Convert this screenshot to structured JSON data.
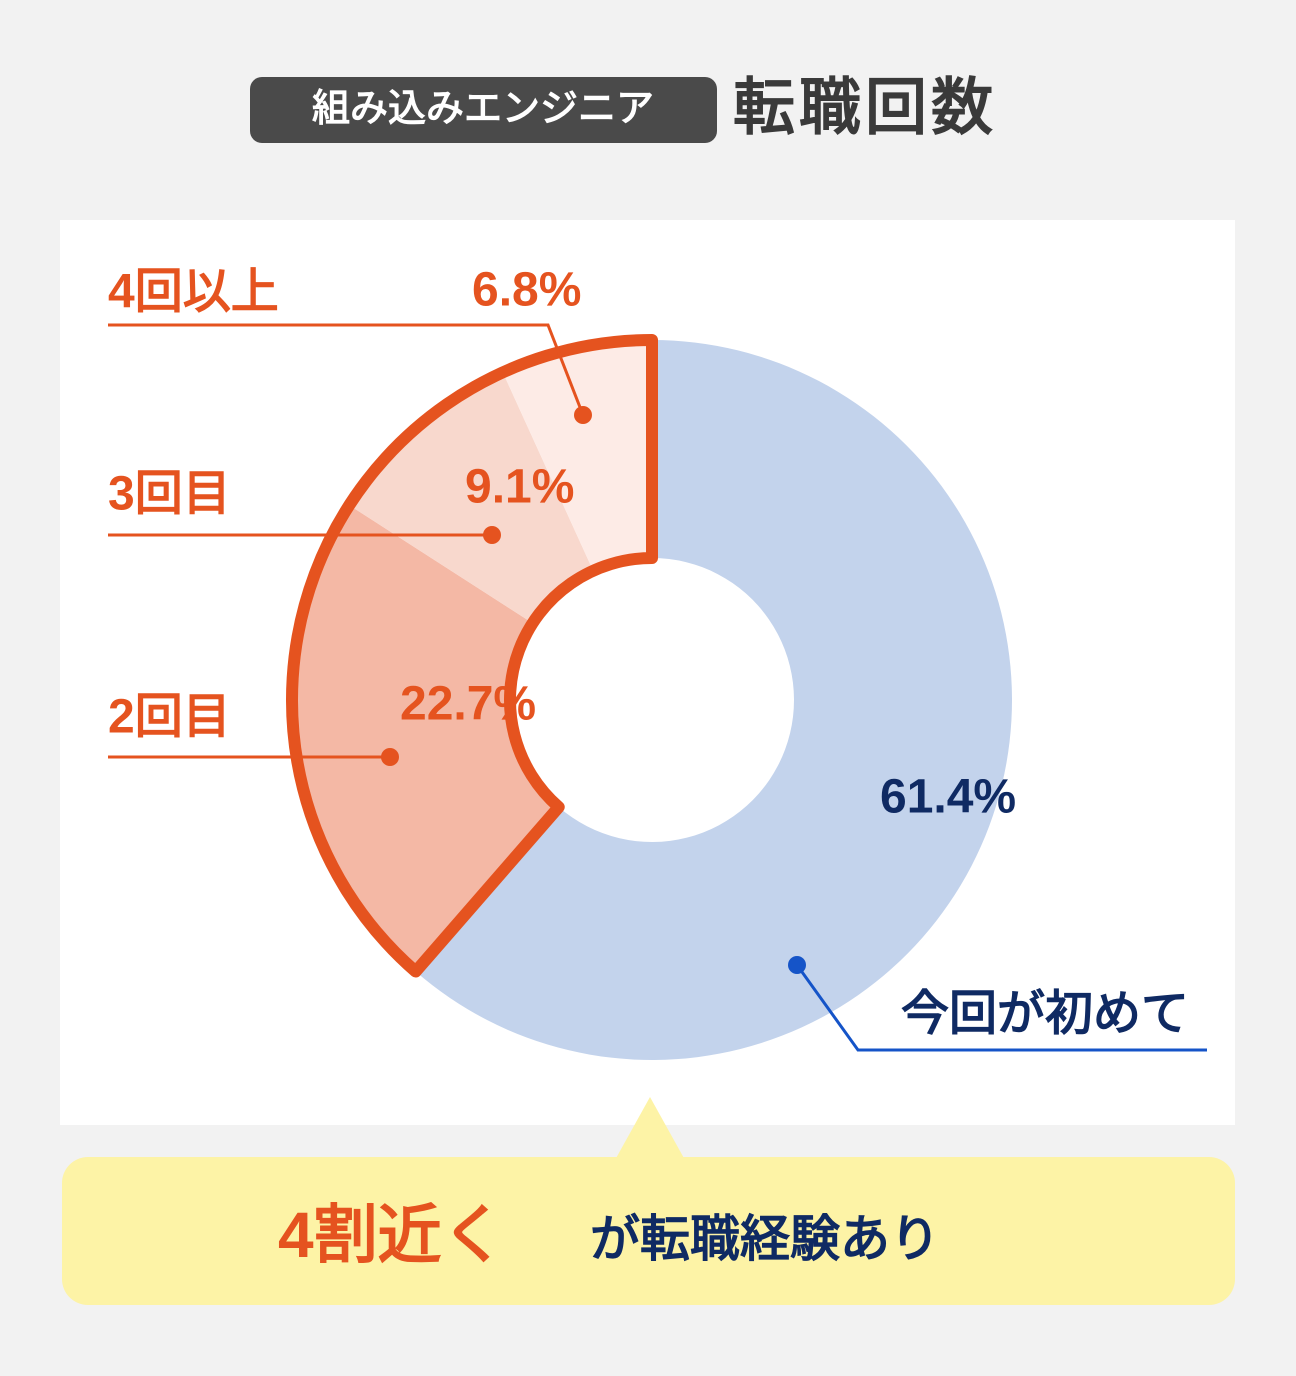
{
  "badge": "組み込みエンジニア",
  "chart_data": {
    "type": "donut",
    "title": "転職回数",
    "categories": [
      "今回が初めて",
      "2回目",
      "3回目",
      "4回以上"
    ],
    "values": [
      61.4,
      22.7,
      9.1,
      6.8
    ],
    "value_labels": [
      "61.4%",
      "22.7%",
      "9.1%",
      "6.8%"
    ],
    "colors": [
      "#c3d3ec",
      "#f4b8a5",
      "#f8d8cd",
      "#fdebe6"
    ],
    "label_colors": [
      "#0f2a63",
      "#e5531f",
      "#e5531f",
      "#e5531f"
    ],
    "highlight_color": "#e5531f"
  },
  "callout": {
    "emphasis": "4割近く",
    "text": "が転職経験あり"
  }
}
